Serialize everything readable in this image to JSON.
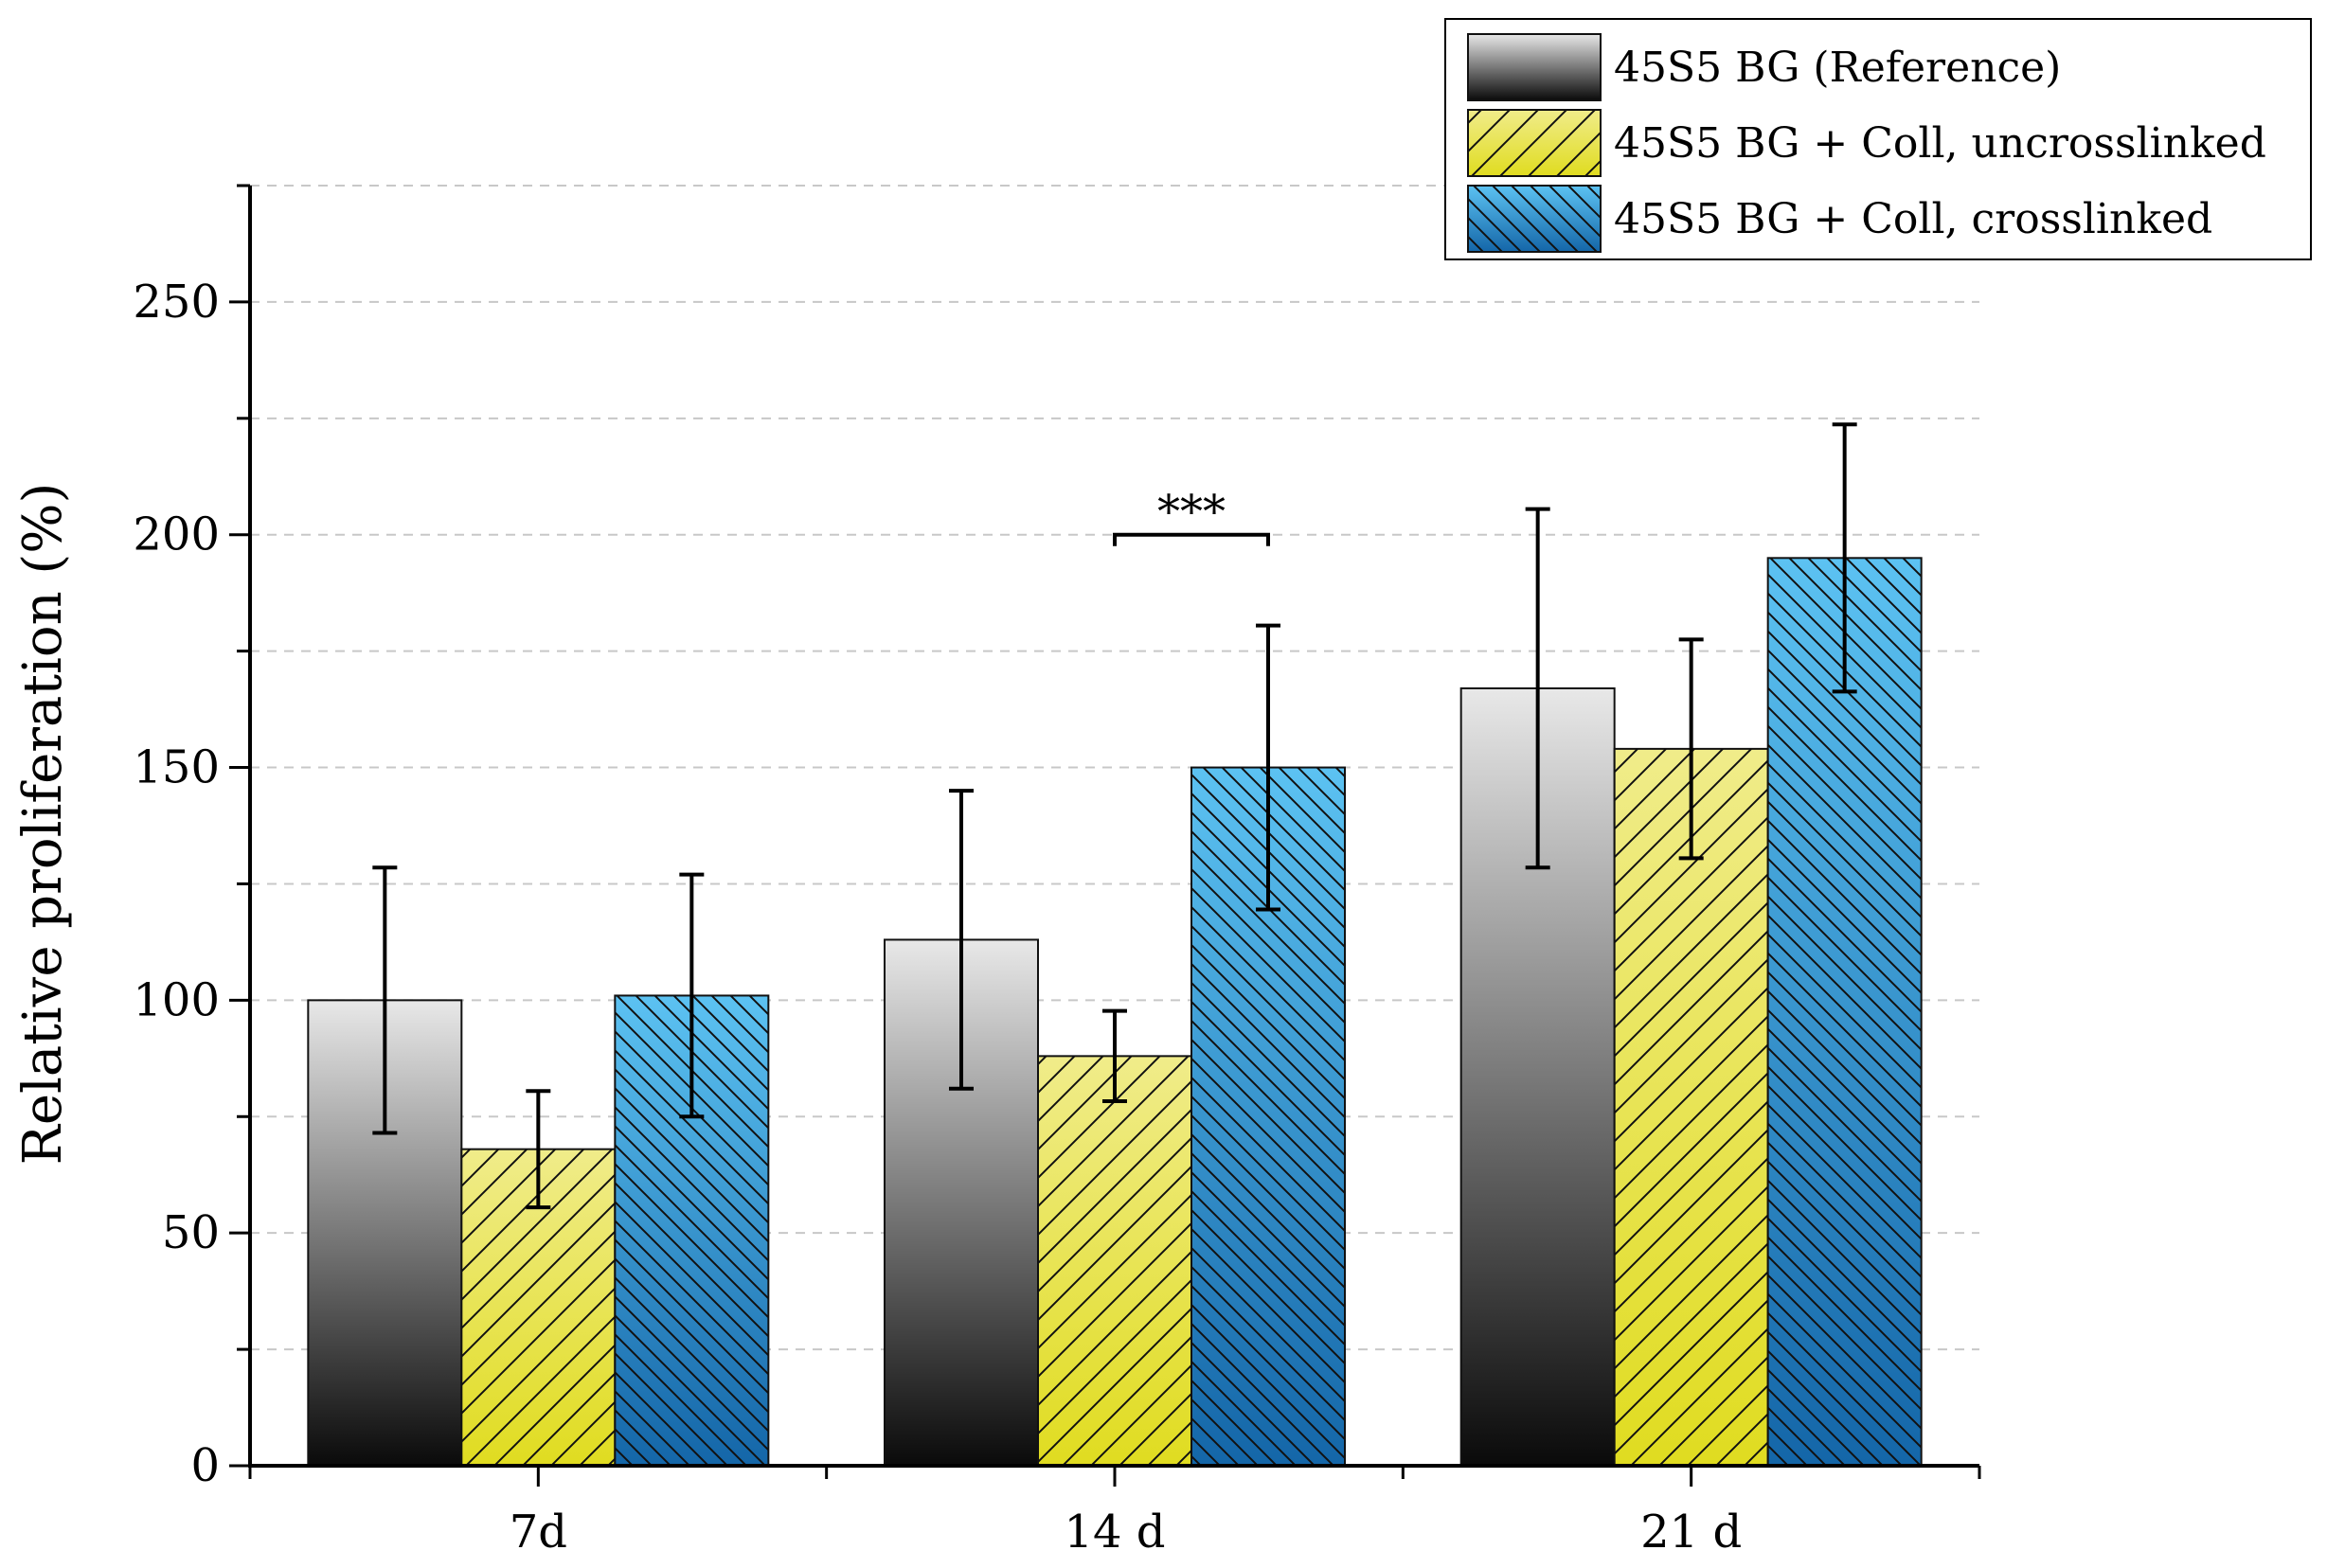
{
  "chart_data": {
    "type": "bar",
    "title": "",
    "xlabel": "",
    "ylabel": "Relative proliferation (%)",
    "ylim": [
      0,
      275
    ],
    "yticks": [
      0,
      50,
      100,
      150,
      200,
      250
    ],
    "grid": "dashed horizontal",
    "legend_position": "top-right",
    "categories": [
      "7d",
      "14 d",
      "21 d"
    ],
    "series": [
      {
        "name": "45S5 BG (Reference)",
        "style": "gray-gradient",
        "values": [
          100,
          113,
          167
        ],
        "errors": [
          28.5,
          32,
          38.5
        ]
      },
      {
        "name": "45S5 BG + Coll, uncrosslinked",
        "style": "yellow-hatch",
        "values": [
          68,
          88,
          154
        ],
        "errors": [
          12.5,
          9.7,
          23.5
        ]
      },
      {
        "name": "45S5 BG + Coll, crosslinked",
        "style": "blue-hatch",
        "values": [
          101,
          150,
          195
        ],
        "errors": [
          26,
          30.5,
          28.7
        ]
      }
    ],
    "annotations": [
      {
        "text": "***",
        "category_index": 1,
        "from_series": 1,
        "to_series": 2,
        "y": 200
      }
    ]
  },
  "colors": {
    "gray_light": "#e8e8e8",
    "gray_dark": "#0a0a0a",
    "yellow_light": "#f0ec8a",
    "yellow_dark": "#e0dc20",
    "blue_light": "#5cc2f2",
    "blue_dark": "#1466a8",
    "grid": "#c8c8c8"
  }
}
